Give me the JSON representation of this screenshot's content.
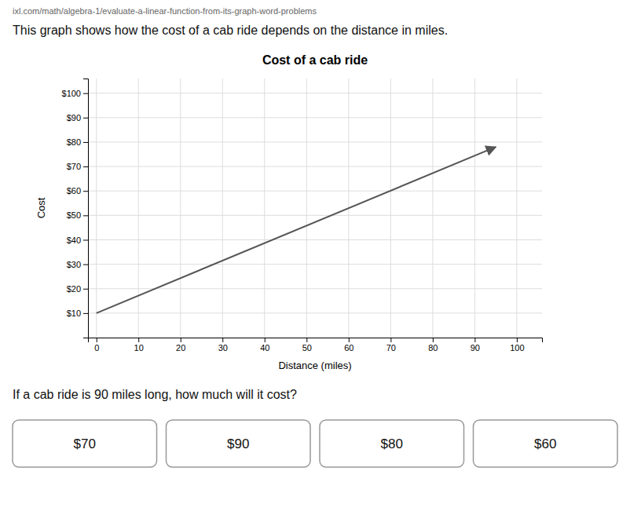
{
  "url_text": "ixl.com/math/algebra-1/evaluate-a-linear-function-from-its-graph-word-problems",
  "description": "This graph shows how the cost of a cab ride depends on the distance in miles.",
  "question": "If a cab ride is 90 miles long, how much will it cost?",
  "answer_choices": [
    "$70",
    "$90",
    "$80",
    "$60"
  ],
  "chart_data": {
    "type": "line",
    "title": "Cost of a cab ride",
    "x_label": "Distance (miles)",
    "y_label": "Cost",
    "x": [
      0,
      95
    ],
    "values": [
      10,
      78
    ],
    "color": "#555555",
    "xlim": [
      -2,
      106
    ],
    "ylim": [
      0,
      106
    ],
    "xticks": [
      0,
      10,
      20,
      30,
      40,
      50,
      60,
      70,
      80,
      90,
      100
    ],
    "yticks": [
      {
        "value": 10,
        "label": "$10"
      },
      {
        "value": 20,
        "label": "$20"
      },
      {
        "value": 30,
        "label": "$30"
      },
      {
        "value": 40,
        "label": "$40"
      },
      {
        "value": 50,
        "label": "$50"
      },
      {
        "value": 60,
        "label": "$60"
      },
      {
        "value": 70,
        "label": "$70"
      },
      {
        "value": 80,
        "label": "$80"
      },
      {
        "value": 90,
        "label": "$90"
      },
      {
        "value": 100,
        "label": "$100"
      }
    ],
    "grid": true
  }
}
